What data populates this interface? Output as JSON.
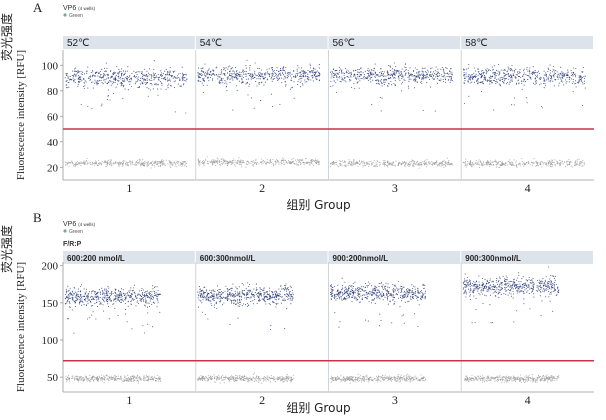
{
  "chart_data": [
    {
      "panel": "A",
      "type": "scatter",
      "subtitle": "VP6",
      "subtitle_note": "(4 wells)",
      "legend": "Green",
      "facet_label_title": "",
      "facets": [
        "52℃",
        "54℃",
        "56℃",
        "58℃"
      ],
      "categories": [
        "1",
        "2",
        "3",
        "4"
      ],
      "xlabel": "组别 Group",
      "ylabel_cn": "荧光强度",
      "ylabel": "Fluorescence intensity [RFU]",
      "yticks": [
        20,
        40,
        60,
        80,
        100
      ],
      "ylim": [
        10,
        112
      ],
      "threshold": 50,
      "threshold_color": "#c8324a",
      "positive_color": "#1f2f6e",
      "negative_color": "#9a9a9a",
      "series": [
        {
          "name": "Green",
          "positive_mean": [
            90,
            92,
            92,
            91
          ],
          "negative_mean": [
            23,
            24,
            23,
            23
          ]
        }
      ],
      "grid": false
    },
    {
      "panel": "B",
      "type": "scatter",
      "subtitle": "VP6",
      "subtitle_note": "(4 wells)",
      "legend": "Green",
      "facet_label_title": "F/R:P",
      "facets": [
        "600:200 nmol/L",
        "600:300nmol/L",
        "900:200nmol/L",
        "900:300nmol/L"
      ],
      "categories": [
        "1",
        "2",
        "3",
        "4"
      ],
      "xlabel": "组别 Group",
      "ylabel_cn": "荧光强度",
      "ylabel": "Fluorescence intensity [RFU]",
      "yticks": [
        50,
        100,
        150,
        200
      ],
      "ylim": [
        30,
        205
      ],
      "threshold": 72,
      "threshold_color": "#c8324a",
      "positive_color": "#1f2f6e",
      "negative_color": "#9a9a9a",
      "series": [
        {
          "name": "Green",
          "positive_mean": [
            158,
            160,
            163,
            172
          ],
          "negative_mean": [
            48,
            48,
            48,
            48
          ]
        }
      ],
      "grid": false
    }
  ]
}
